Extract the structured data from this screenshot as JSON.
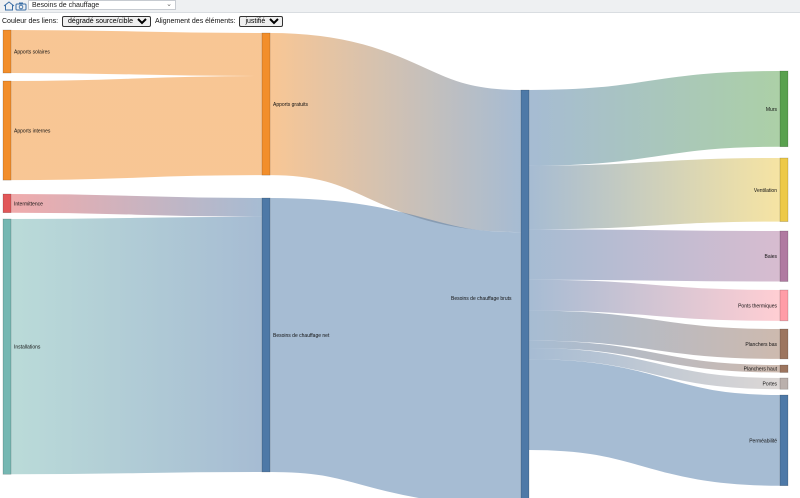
{
  "header": {
    "selected_view": "Besoins de chauffage",
    "icons": [
      "home-icon",
      "camera-icon",
      "chevron-down-icon"
    ]
  },
  "controls": {
    "link_color_label": "Couleur des liens:",
    "link_color_value": "dégradé source/cible",
    "alignment_label": "Alignement des éléments:",
    "alignment_value": "justifié"
  },
  "chart_data": {
    "type": "sankey",
    "nodes": [
      {
        "id": "apports_solaires",
        "label": "Apports solaires",
        "color": "#f28e2b"
      },
      {
        "id": "apports_internes",
        "label": "Apports internes",
        "color": "#f28e2b"
      },
      {
        "id": "intermittence",
        "label": "Intermittence",
        "color": "#e15759"
      },
      {
        "id": "installations",
        "label": "Installations",
        "color": "#76b7b2"
      },
      {
        "id": "apports_gratuits",
        "label": "Apports gratuits",
        "color": "#f28e2b"
      },
      {
        "id": "besoins_net",
        "label": "Besoins de chauffage net",
        "color": "#4e79a7"
      },
      {
        "id": "besoins_bruts",
        "label": "Besoins de chauffage bruts",
        "color": "#4e79a7"
      },
      {
        "id": "murs",
        "label": "Murs",
        "color": "#59a14f"
      },
      {
        "id": "ventilation",
        "label": "Ventilation",
        "color": "#edc948"
      },
      {
        "id": "baies",
        "label": "Baies",
        "color": "#b07aa1"
      },
      {
        "id": "ponts_thermiques",
        "label": "Ponts thermiques",
        "color": "#ff9da7"
      },
      {
        "id": "planchers_bas",
        "label": "Planchers bas",
        "color": "#9c755f"
      },
      {
        "id": "planchers_haut",
        "label": "Planchers haut",
        "color": "#9c755f"
      },
      {
        "id": "portes",
        "label": "Portes",
        "color": "#bab0ac"
      },
      {
        "id": "permeabilite",
        "label": "Perméabilité",
        "color": "#4e79a7"
      }
    ],
    "links": [
      {
        "source": "apports_solaires",
        "target": "apports_gratuits",
        "value": 46
      },
      {
        "source": "apports_internes",
        "target": "apports_gratuits",
        "value": 106
      },
      {
        "source": "intermittence",
        "target": "besoins_net",
        "value": 20
      },
      {
        "source": "installations",
        "target": "besoins_net",
        "value": 273
      },
      {
        "source": "apports_gratuits",
        "target": "besoins_bruts",
        "value": 152
      },
      {
        "source": "besoins_net",
        "target": "besoins_bruts",
        "value": 293
      },
      {
        "source": "besoins_bruts",
        "target": "murs",
        "value": 81
      },
      {
        "source": "besoins_bruts",
        "target": "ventilation",
        "value": 68
      },
      {
        "source": "besoins_bruts",
        "target": "baies",
        "value": 54
      },
      {
        "source": "besoins_bruts",
        "target": "ponts_thermiques",
        "value": 33
      },
      {
        "source": "besoins_bruts",
        "target": "planchers_bas",
        "value": 32
      },
      {
        "source": "besoins_bruts",
        "target": "planchers_haut",
        "value": 8
      },
      {
        "source": "besoins_bruts",
        "target": "portes",
        "value": 12
      },
      {
        "source": "besoins_bruts",
        "target": "permeabilite",
        "value": 97
      }
    ]
  }
}
